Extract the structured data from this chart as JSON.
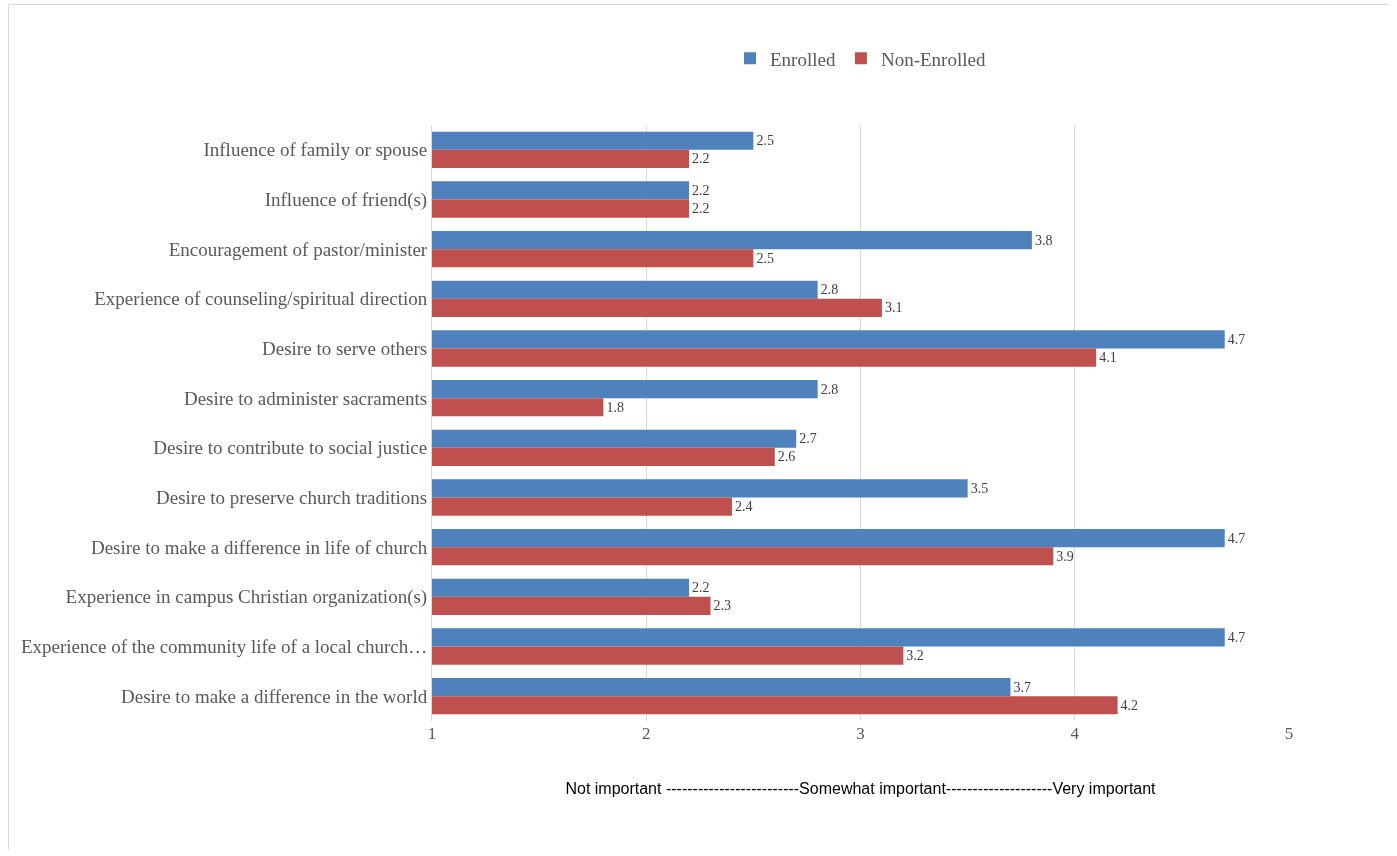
{
  "chart_data": {
    "type": "bar",
    "orientation": "horizontal",
    "categories": [
      "Influence of family or spouse",
      "Influence of friend(s)",
      "Encouragement of pastor/minister",
      "Experience of counseling/spiritual direction",
      "Desire to serve others",
      "Desire to administer sacraments",
      "Desire to contribute to social justice",
      "Desire to preserve church traditions",
      "Desire to make a difference in life of church",
      "Experience in campus Christian organization(s)",
      "Experience of the community life of a local church…",
      "Desire to make a difference in the world"
    ],
    "series": [
      {
        "name": "Enrolled",
        "color": "#4f81bd",
        "values": [
          2.5,
          2.2,
          3.8,
          2.8,
          4.7,
          2.8,
          2.7,
          3.5,
          4.7,
          2.2,
          4.7,
          3.7
        ]
      },
      {
        "name": "Non-Enrolled",
        "color": "#c0504d",
        "values": [
          2.2,
          2.2,
          2.5,
          3.1,
          4.1,
          1.8,
          2.6,
          2.4,
          3.9,
          2.3,
          3.2,
          4.2
        ]
      }
    ],
    "xlim": [
      1,
      5
    ],
    "xticks": [
      1,
      2,
      3,
      4,
      5
    ],
    "grid": "x",
    "legend": "top",
    "data_labels": true,
    "xlabel": "Not important -------------------------Somewhat important--------------------Very important"
  }
}
